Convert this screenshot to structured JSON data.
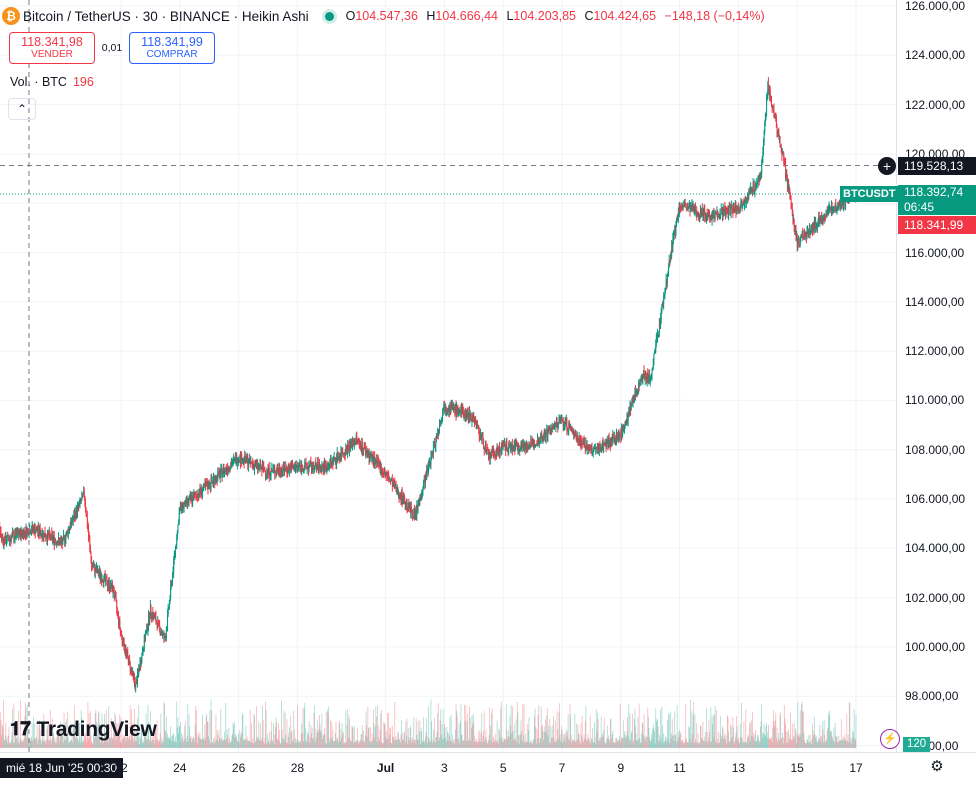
{
  "header": {
    "title": "Bitcoin / TetherUS · 30 · BINANCE · Heikin Ashi",
    "open_label": "O",
    "open": "104.547,36",
    "high_label": "H",
    "high": "104.666,44",
    "low_label": "L",
    "low": "104.203,85",
    "close_label": "C",
    "close": "104.424,65",
    "change": "−148,18 (−0,14%)"
  },
  "trade": {
    "sell_price": "118.341,98",
    "sell_label": "VENDER",
    "spread": "0,01",
    "buy_price": "118.341,99",
    "buy_label": "COMPRAR"
  },
  "volume": {
    "label": "Vol. · BTC",
    "value": "196",
    "axis_tag": "120"
  },
  "y_axis": {
    "labels": [
      "126.000,00",
      "124.000,00",
      "122.000,00",
      "120.000,00",
      "118.000,00",
      "116.000,00",
      "114.000,00",
      "112.000,00",
      "110.000,00",
      "108.000,00",
      "106.000,00",
      "104.000,00",
      "102.000,00",
      "100.000,00",
      "98.000,00",
      "96.000,00"
    ],
    "crosshair_price": "119.528,13",
    "symbol_tag": "BTCUSDT",
    "last_price": "118.392,74",
    "countdown": "06:45",
    "ask_price": "118.341,99"
  },
  "x_axis": {
    "crosshair_label": "mié 18 Jun '25   00:30",
    "labels": [
      "22",
      "24",
      "26",
      "28",
      "Jul",
      "3",
      "5",
      "7",
      "9",
      "11",
      "13",
      "15",
      "17"
    ]
  },
  "brand": {
    "text": "TradingView"
  },
  "colors": {
    "up": "#089981",
    "down": "#f23645",
    "buy": "#2962ff"
  },
  "chart_data": {
    "type": "candlestick",
    "interval": "30",
    "x_range": [
      "2025-06-17",
      "2025-07-17"
    ],
    "ylim": [
      96000,
      126000
    ],
    "series": [
      {
        "name": "BTCUSDT",
        "path": [
          {
            "date": "2025-06-17",
            "close": 107500
          },
          {
            "date": "2025-06-18",
            "close": 104300
          },
          {
            "date": "2025-06-19",
            "close": 104800
          },
          {
            "date": "2025-06-20",
            "close": 104200
          },
          {
            "date": "2025-06-20T18:00",
            "close": 106200
          },
          {
            "date": "2025-06-21",
            "close": 103300
          },
          {
            "date": "2025-06-21T18:00",
            "close": 102300
          },
          {
            "date": "2025-06-22",
            "close": 100500
          },
          {
            "date": "2025-06-22T12:00",
            "close": 98400
          },
          {
            "date": "2025-06-23",
            "close": 101500
          },
          {
            "date": "2025-06-23T12:00",
            "close": 100300
          },
          {
            "date": "2025-06-24",
            "close": 105600
          },
          {
            "date": "2025-06-25",
            "close": 106600
          },
          {
            "date": "2025-06-26",
            "close": 107700
          },
          {
            "date": "2025-06-27",
            "close": 107100
          },
          {
            "date": "2025-06-28",
            "close": 107300
          },
          {
            "date": "2025-06-29",
            "close": 107300
          },
          {
            "date": "2025-06-30",
            "close": 108400
          },
          {
            "date": "2025-07-01",
            "close": 107000
          },
          {
            "date": "2025-07-02",
            "close": 105300
          },
          {
            "date": "2025-07-02T18:00",
            "close": 108600
          },
          {
            "date": "2025-07-03",
            "close": 109800
          },
          {
            "date": "2025-07-04",
            "close": 109300
          },
          {
            "date": "2025-07-04T12:00",
            "close": 107700
          },
          {
            "date": "2025-07-05",
            "close": 108100
          },
          {
            "date": "2025-07-06",
            "close": 108200
          },
          {
            "date": "2025-07-07",
            "close": 109200
          },
          {
            "date": "2025-07-08",
            "close": 107900
          },
          {
            "date": "2025-07-09",
            "close": 108600
          },
          {
            "date": "2025-07-09T18:00",
            "close": 111100
          },
          {
            "date": "2025-07-10",
            "close": 110800
          },
          {
            "date": "2025-07-10T18:00",
            "close": 116300
          },
          {
            "date": "2025-07-11",
            "close": 117900
          },
          {
            "date": "2025-07-12",
            "close": 117500
          },
          {
            "date": "2025-07-13",
            "close": 117800
          },
          {
            "date": "2025-07-13T18:00",
            "close": 119000
          },
          {
            "date": "2025-07-14",
            "close": 122800
          },
          {
            "date": "2025-07-14T12:00",
            "close": 120000
          },
          {
            "date": "2025-07-15",
            "close": 116400
          },
          {
            "date": "2025-07-16",
            "close": 117600
          },
          {
            "date": "2025-07-17",
            "close": 118400
          }
        ]
      }
    ]
  }
}
